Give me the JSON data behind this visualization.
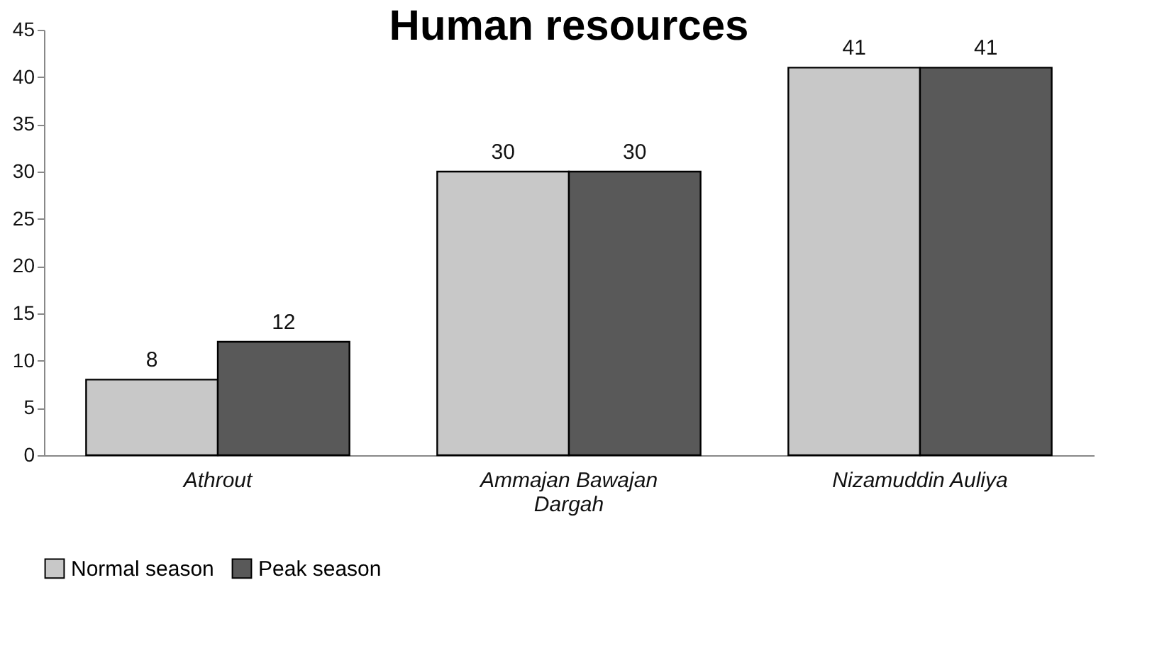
{
  "chart_data": {
    "type": "bar",
    "title": "Human resources",
    "categories": [
      "Athrout",
      "Ammajan Bawajan Dargah",
      "Nizamuddin Auliya"
    ],
    "series": [
      {
        "name": "Normal season",
        "color": "#c8c8c8",
        "values": [
          8,
          30,
          41
        ]
      },
      {
        "name": "Peak season",
        "color": "#595959",
        "values": [
          12,
          30,
          41
        ]
      }
    ],
    "ylim": [
      0,
      45
    ],
    "yticks": [
      0,
      5,
      10,
      15,
      20,
      25,
      30,
      35,
      40,
      45
    ],
    "grid": false,
    "legend": "bottom",
    "data_labels": true
  }
}
